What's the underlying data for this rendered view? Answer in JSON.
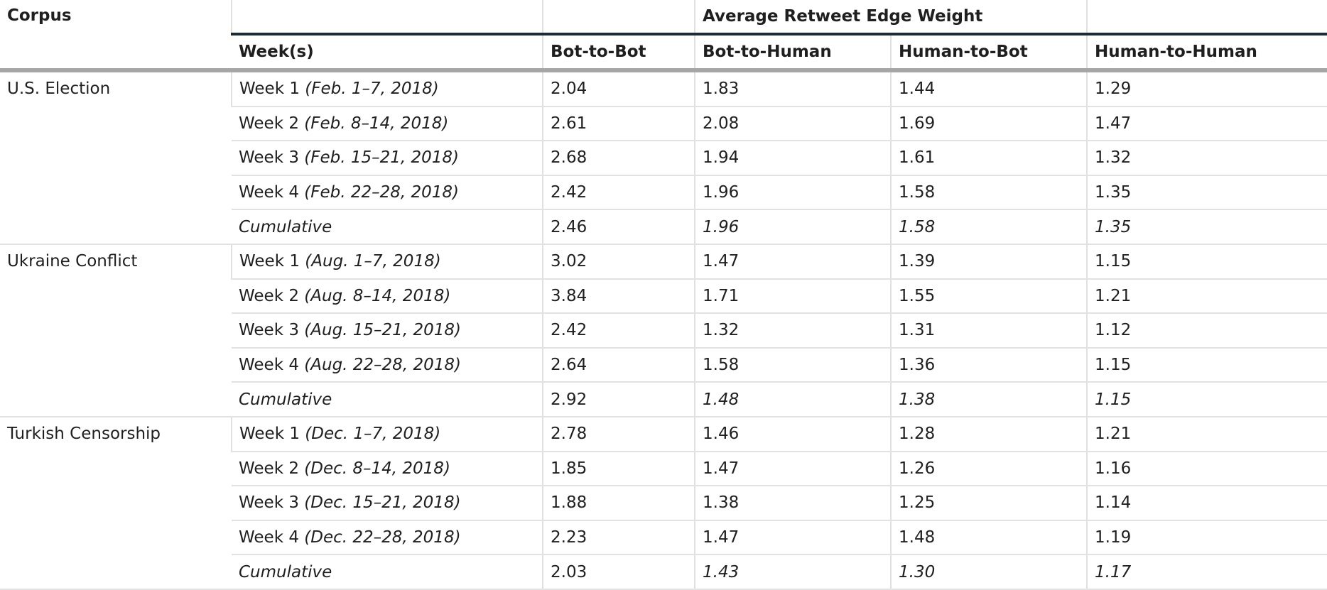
{
  "table": {
    "group_header": "Average Retweet Edge Weight",
    "headers": {
      "corpus": "Corpus",
      "weeks": "Week(s)",
      "bot_to_bot": "Bot-to-Bot",
      "bot_to_human": "Bot-to-Human",
      "human_to_bot": "Human-to-Bot",
      "human_to_human": "Human-to-Human"
    },
    "groups": [
      {
        "corpus": "U.S. Election",
        "rows": [
          {
            "week": "Week 1",
            "dates": "(Feb. 1–7, 2018)",
            "b2b": "2.04",
            "b2h": "1.83",
            "h2b": "1.44",
            "h2h": "1.29"
          },
          {
            "week": "Week 2",
            "dates": "(Feb. 8–14, 2018)",
            "b2b": "2.61",
            "b2h": "2.08",
            "h2b": "1.69",
            "h2h": "1.47"
          },
          {
            "week": "Week 3",
            "dates": "(Feb. 15–21, 2018)",
            "b2b": "2.68",
            "b2h": "1.94",
            "h2b": "1.61",
            "h2h": "1.32"
          },
          {
            "week": "Week 4",
            "dates": "(Feb. 22–28, 2018)",
            "b2b": "2.42",
            "b2h": "1.96",
            "h2b": "1.58",
            "h2h": "1.35"
          }
        ],
        "cumulative": {
          "label": "Cumulative",
          "b2b": "2.46",
          "b2h": "1.96",
          "h2b": "1.58",
          "h2h": "1.35"
        }
      },
      {
        "corpus": "Ukraine Conflict",
        "rows": [
          {
            "week": "Week 1",
            "dates": "(Aug. 1–7, 2018)",
            "b2b": "3.02",
            "b2h": "1.47",
            "h2b": "1.39",
            "h2h": "1.15"
          },
          {
            "week": "Week 2",
            "dates": "(Aug. 8–14, 2018)",
            "b2b": "3.84",
            "b2h": "1.71",
            "h2b": "1.55",
            "h2h": "1.21"
          },
          {
            "week": "Week 3",
            "dates": "(Aug. 15–21, 2018)",
            "b2b": "2.42",
            "b2h": "1.32",
            "h2b": "1.31",
            "h2h": "1.12"
          },
          {
            "week": "Week 4",
            "dates": "(Aug. 22–28, 2018)",
            "b2b": "2.64",
            "b2h": "1.58",
            "h2b": "1.36",
            "h2h": "1.15"
          }
        ],
        "cumulative": {
          "label": "Cumulative",
          "b2b": "2.92",
          "b2h": "1.48",
          "h2b": "1.38",
          "h2h": "1.15"
        }
      },
      {
        "corpus": "Turkish Censorship",
        "rows": [
          {
            "week": "Week 1",
            "dates": "(Dec. 1–7, 2018)",
            "b2b": "2.78",
            "b2h": "1.46",
            "h2b": "1.28",
            "h2h": "1.21"
          },
          {
            "week": "Week 2",
            "dates": "(Dec. 8–14, 2018)",
            "b2b": "1.85",
            "b2h": "1.47",
            "h2b": "1.26",
            "h2h": "1.16"
          },
          {
            "week": "Week 3",
            "dates": "(Dec. 15–21, 2018)",
            "b2b": "1.88",
            "b2h": "1.38",
            "h2b": "1.25",
            "h2h": "1.14"
          },
          {
            "week": "Week 4",
            "dates": "(Dec. 22–28, 2018)",
            "b2b": "2.23",
            "b2h": "1.47",
            "h2b": "1.48",
            "h2h": "1.19"
          }
        ],
        "cumulative": {
          "label": "Cumulative",
          "b2b": "2.03",
          "b2h": "1.43",
          "h2b": "1.30",
          "h2h": "1.17"
        }
      }
    ]
  }
}
